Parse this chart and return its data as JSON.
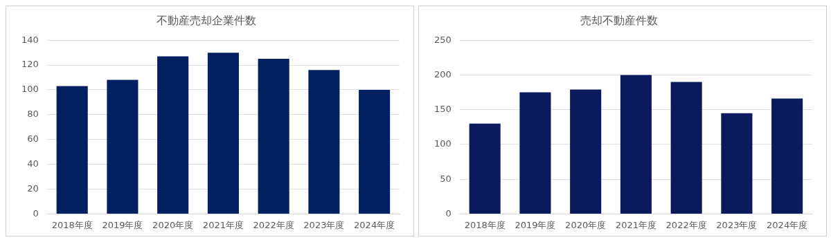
{
  "chart_data": [
    {
      "type": "bar",
      "title": "不動産売却企業件数",
      "categories": [
        "2018年度",
        "2019年度",
        "2020年度",
        "2021年度",
        "2022年度",
        "2023年度",
        "2024年度"
      ],
      "values": [
        103,
        108,
        127,
        130,
        125,
        116,
        100
      ],
      "color": "#002060",
      "ylim": [
        0,
        140
      ],
      "yticks": [
        0,
        20,
        40,
        60,
        80,
        100,
        120,
        140
      ],
      "grid": "y"
    },
    {
      "type": "bar",
      "title": "売却不動産件数",
      "categories": [
        "2018年度",
        "2019年度",
        "2020年度",
        "2021年度",
        "2022年度",
        "2023年度",
        "2024年度"
      ],
      "values": [
        130,
        175,
        179,
        200,
        190,
        145,
        166
      ],
      "color": "#0a1a5c",
      "ylim": [
        0,
        250
      ],
      "yticks": [
        0,
        50,
        100,
        150,
        200,
        250
      ],
      "grid": "y"
    }
  ]
}
